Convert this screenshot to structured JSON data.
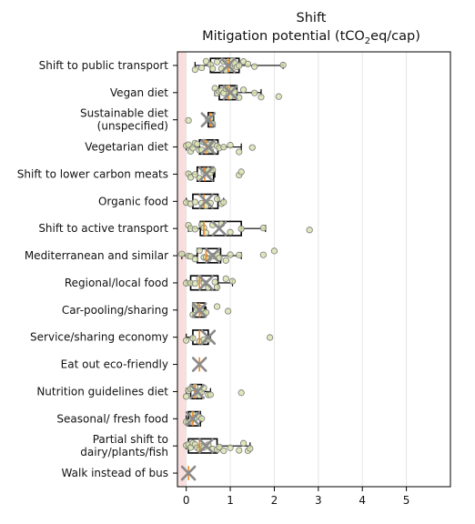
{
  "chart_data": {
    "type": "box",
    "title": "Shift",
    "subtitle_main": "Mitigation potential (tCO",
    "subtitle_sub": "2",
    "subtitle_tail": "eq/cap)",
    "xlabel": "",
    "ylabel": "",
    "xlim": [
      -0.2,
      6.0
    ],
    "xticks": [
      0,
      1,
      2,
      3,
      4,
      5
    ],
    "grid": "vertical",
    "colors": {
      "box": "#000000",
      "mean_marker": "#8a8a8a",
      "median": "#f08a24",
      "point_fill": "#d9e4b0",
      "point_stroke": "#777777",
      "zero_band": "#f9dede",
      "grid": "#e6e6e6"
    },
    "categories": [
      {
        "label": [
          "Shift to public transport"
        ],
        "q1": 0.55,
        "median": 0.95,
        "q3": 1.2,
        "wlo": 0.2,
        "whi": 2.2,
        "mean": 0.95,
        "points": [
          0.2,
          0.35,
          0.45,
          0.55,
          0.6,
          0.7,
          0.8,
          0.85,
          0.9,
          0.95,
          1.0,
          1.05,
          1.1,
          1.15,
          1.2,
          1.3,
          1.4,
          1.55,
          2.2
        ]
      },
      {
        "label": [
          "Vegan diet"
        ],
        "q1": 0.75,
        "median": 0.95,
        "q3": 1.15,
        "wlo": 0.65,
        "whi": 1.7,
        "mean": 1.0,
        "points": [
          0.65,
          0.7,
          0.75,
          0.8,
          0.85,
          0.9,
          0.95,
          1.0,
          1.05,
          1.1,
          1.2,
          1.3,
          1.55,
          1.7,
          2.1
        ]
      },
      {
        "label": [
          "Sustainable diet",
          "(unspecified)"
        ],
        "q1": 0.5,
        "median": 0.55,
        "q3": 0.62,
        "wlo": 0.5,
        "whi": 0.62,
        "mean": 0.5,
        "points": [
          0.05,
          0.5,
          0.55,
          0.6
        ]
      },
      {
        "label": [
          "Vegetarian diet"
        ],
        "q1": 0.3,
        "median": 0.45,
        "q3": 0.72,
        "wlo": 0.0,
        "whi": 1.25,
        "mean": 0.5,
        "points": [
          0.0,
          0.05,
          0.1,
          0.15,
          0.2,
          0.25,
          0.3,
          0.35,
          0.4,
          0.45,
          0.5,
          0.55,
          0.6,
          0.7,
          0.75,
          0.85,
          1.0,
          1.2,
          1.5
        ]
      },
      {
        "label": [
          "Shift to lower carbon meats"
        ],
        "q1": 0.25,
        "median": 0.42,
        "q3": 0.62,
        "wlo": 0.05,
        "whi": 0.65,
        "mean": 0.45,
        "points": [
          0.05,
          0.1,
          0.2,
          0.3,
          0.4,
          0.45,
          0.5,
          0.55,
          0.6,
          1.2,
          1.25
        ]
      },
      {
        "label": [
          "Organic food"
        ],
        "q1": 0.15,
        "median": 0.4,
        "q3": 0.72,
        "wlo": 0.0,
        "whi": 0.85,
        "mean": 0.45,
        "points": [
          0.0,
          0.1,
          0.2,
          0.35,
          0.45,
          0.55,
          0.7,
          0.8,
          0.85
        ]
      },
      {
        "label": [
          "Shift to active transport"
        ],
        "q1": 0.32,
        "median": 0.4,
        "q3": 1.25,
        "wlo": 0.05,
        "whi": 1.8,
        "mean": 0.75,
        "points": [
          0.05,
          0.1,
          0.2,
          0.35,
          0.4,
          0.45,
          0.6,
          0.8,
          1.0,
          1.25,
          1.75,
          2.8
        ]
      },
      {
        "label": [
          "Mediterranean and similar"
        ],
        "q1": 0.25,
        "median": 0.45,
        "q3": 0.78,
        "wlo": -0.1,
        "whi": 1.25,
        "mean": 0.6,
        "points": [
          -0.1,
          0.05,
          0.1,
          0.2,
          0.3,
          0.4,
          0.45,
          0.5,
          0.6,
          0.7,
          0.75,
          0.9,
          1.0,
          1.2,
          1.75,
          2.0
        ]
      },
      {
        "label": [
          "Regional/local food"
        ],
        "q1": 0.1,
        "median": 0.3,
        "q3": 0.72,
        "wlo": 0.0,
        "whi": 1.05,
        "mean": 0.45,
        "points": [
          0.0,
          0.1,
          0.2,
          0.3,
          0.4,
          0.5,
          0.65,
          0.7,
          0.9,
          1.05
        ]
      },
      {
        "label": [
          "Car-pooling/sharing"
        ],
        "q1": 0.15,
        "median": 0.3,
        "q3": 0.42,
        "wlo": 0.15,
        "whi": 0.45,
        "mean": 0.3,
        "points": [
          0.15,
          0.2,
          0.25,
          0.3,
          0.35,
          0.4,
          0.45,
          0.7,
          0.95
        ]
      },
      {
        "label": [
          "Service/sharing economy"
        ],
        "q1": 0.15,
        "median": 0.3,
        "q3": 0.5,
        "wlo": 0.0,
        "whi": 0.55,
        "mean": 0.5,
        "points": [
          0.0,
          0.15,
          0.3,
          0.4,
          0.5,
          1.9
        ]
      },
      {
        "label": [
          "Eat out eco-friendly"
        ],
        "q1": null,
        "median": 0.3,
        "q3": null,
        "wlo": null,
        "whi": null,
        "mean": 0.3,
        "points": []
      },
      {
        "label": [
          "Nutrition guidelines diet"
        ],
        "q1": 0.1,
        "median": 0.2,
        "q3": 0.35,
        "wlo": 0.0,
        "whi": 0.55,
        "mean": 0.25,
        "points": [
          0.0,
          0.05,
          0.1,
          0.15,
          0.2,
          0.25,
          0.3,
          0.35,
          0.4,
          0.5,
          0.55,
          1.25
        ]
      },
      {
        "label": [
          "Seasonal/ fresh food"
        ],
        "q1": 0.05,
        "median": 0.15,
        "q3": 0.32,
        "wlo": 0.0,
        "whi": 0.35,
        "mean": 0.15,
        "points": [
          0.0,
          0.05,
          0.1,
          0.15,
          0.2,
          0.3,
          0.35
        ]
      },
      {
        "label": [
          "Partial shift to",
          "dairy/plants/fish"
        ],
        "q1": 0.05,
        "median": 0.3,
        "q3": 0.7,
        "wlo": 0.0,
        "whi": 1.45,
        "mean": 0.45,
        "points": [
          0.0,
          0.05,
          0.1,
          0.15,
          0.2,
          0.25,
          0.3,
          0.35,
          0.4,
          0.5,
          0.6,
          0.7,
          0.75,
          0.85,
          1.0,
          1.2,
          1.3,
          1.4,
          1.45
        ]
      },
      {
        "label": [
          "Walk instead of bus"
        ],
        "q1": null,
        "median": 0.05,
        "q3": null,
        "wlo": null,
        "whi": null,
        "mean": 0.05,
        "points": []
      }
    ]
  }
}
